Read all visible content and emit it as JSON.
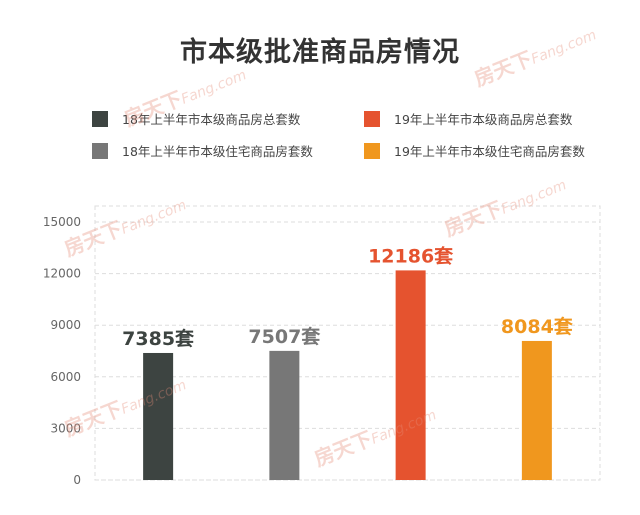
{
  "chart_data": {
    "type": "bar",
    "title": "市本级批准商品房情况",
    "categories": [
      "18年上半年市本级商品房总套数",
      "18年上半年市本级住宅商品房套数",
      "19年上半年市本级商品房总套数",
      "19年上半年市本级住宅商品房套数"
    ],
    "values": [
      7385,
      7507,
      12186,
      8084
    ],
    "value_labels": [
      "7385套",
      "7507套",
      "12186套",
      "8084套"
    ],
    "colors": [
      "#3d4441",
      "#777777",
      "#e5532f",
      "#f0971e"
    ],
    "ylim": [
      0,
      15000
    ],
    "yticks": [
      "0",
      "3000",
      "6000",
      "9000",
      "12000",
      "15000"
    ],
    "grid": true,
    "legend": [
      {
        "label": "18年上半年市本级商品房总套数",
        "color": "#3d4441"
      },
      {
        "label": "19年上半年市本级商品房总套数",
        "color": "#e5532f"
      },
      {
        "label": "18年上半年市本级住宅商品房套数",
        "color": "#777777"
      },
      {
        "label": "19年上半年市本级住宅商品房套数",
        "color": "#f0971e"
      }
    ],
    "legend_position": "top"
  },
  "watermark": {
    "cn": "房天下",
    "en": "Fang.com"
  }
}
